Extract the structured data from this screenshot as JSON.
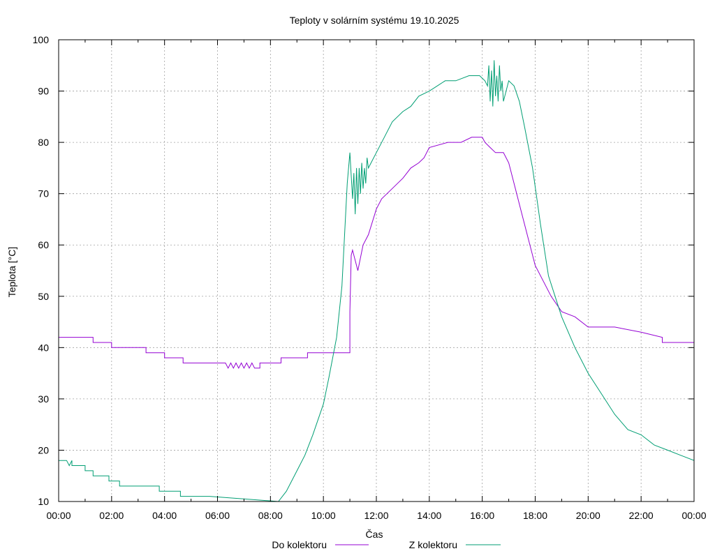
{
  "chart_data": {
    "type": "line",
    "title": "Teploty v solárním systému 19.10.2025",
    "xlabel": "Čas",
    "ylabel": "Teplota [°C]",
    "ylim": [
      10,
      100
    ],
    "xlim_hours": [
      0,
      24
    ],
    "grid": true,
    "legend_position": "bottom",
    "x_ticks": [
      {
        "hour": 0,
        "label": "00:00"
      },
      {
        "hour": 2,
        "label": "02:00"
      },
      {
        "hour": 4,
        "label": "04:00"
      },
      {
        "hour": 6,
        "label": "06:00"
      },
      {
        "hour": 8,
        "label": "08:00"
      },
      {
        "hour": 10,
        "label": "10:00"
      },
      {
        "hour": 12,
        "label": "12:00"
      },
      {
        "hour": 14,
        "label": "14:00"
      },
      {
        "hour": 16,
        "label": "16:00"
      },
      {
        "hour": 18,
        "label": "18:00"
      },
      {
        "hour": 20,
        "label": "20:00"
      },
      {
        "hour": 22,
        "label": "22:00"
      },
      {
        "hour": 24,
        "label": "00:00"
      }
    ],
    "y_ticks": [
      {
        "value": 10,
        "label": "10"
      },
      {
        "value": 20,
        "label": "20"
      },
      {
        "value": 30,
        "label": "30"
      },
      {
        "value": 40,
        "label": "40"
      },
      {
        "value": 50,
        "label": "50"
      },
      {
        "value": 60,
        "label": "60"
      },
      {
        "value": 70,
        "label": "70"
      },
      {
        "value": 80,
        "label": "80"
      },
      {
        "value": 90,
        "label": "90"
      },
      {
        "value": 100,
        "label": "100"
      }
    ],
    "series": [
      {
        "name": "Do kolektoru",
        "color": "#9400d3",
        "x": [
          0,
          1.3,
          1.3,
          2.0,
          2.0,
          3.3,
          3.3,
          4.0,
          4.0,
          4.7,
          4.7,
          6.3,
          6.4,
          6.5,
          6.6,
          6.7,
          6.8,
          6.9,
          7.0,
          7.1,
          7.2,
          7.3,
          7.4,
          7.5,
          7.6,
          7.6,
          8.4,
          8.4,
          9.4,
          9.4,
          11.0,
          11.0,
          11.05,
          11.1,
          11.2,
          11.3,
          11.5,
          11.7,
          12.0,
          12.2,
          12.6,
          13.0,
          13.3,
          13.6,
          13.8,
          14.0,
          14.7,
          15.0,
          15.2,
          15.6,
          16.0,
          16.1,
          16.3,
          16.5,
          16.8,
          17.0,
          17.2,
          17.5,
          17.8,
          18.0,
          18.3,
          18.6,
          19.0,
          19.5,
          20.0,
          21.0,
          22.0,
          22.8,
          22.8,
          24.0
        ],
        "values": [
          42,
          42,
          41,
          41,
          40,
          40,
          39,
          39,
          38,
          38,
          37,
          37,
          36,
          37,
          36,
          37,
          36,
          37,
          36,
          37,
          36,
          37,
          36,
          36,
          36,
          37,
          37,
          38,
          38,
          39,
          39,
          47,
          58,
          59,
          57,
          55,
          60,
          62,
          67,
          69,
          71,
          73,
          75,
          76,
          77,
          79,
          80,
          80,
          80,
          81,
          81,
          80,
          79,
          78,
          78,
          76,
          72,
          66,
          60,
          56,
          53,
          50,
          47,
          46,
          44,
          44,
          43,
          42,
          41,
          41
        ]
      },
      {
        "name": "Z kolektoru",
        "color": "#009e73",
        "x": [
          0,
          0.3,
          0.4,
          0.5,
          0.5,
          1.0,
          1.0,
          1.3,
          1.3,
          1.9,
          1.9,
          2.3,
          2.3,
          3.0,
          3.0,
          3.8,
          3.8,
          4.6,
          4.6,
          5.7,
          8.3,
          8.6,
          9.0,
          9.3,
          9.6,
          10.0,
          10.2,
          10.5,
          10.7,
          10.8,
          10.9,
          11.0,
          11.1,
          11.15,
          11.2,
          11.25,
          11.3,
          11.35,
          11.4,
          11.45,
          11.5,
          11.55,
          11.6,
          11.65,
          11.7,
          11.8,
          12.0,
          12.3,
          12.6,
          13.0,
          13.3,
          13.6,
          14.0,
          14.3,
          14.6,
          15.0,
          15.5,
          15.9,
          16.1,
          16.2,
          16.25,
          16.3,
          16.35,
          16.4,
          16.45,
          16.5,
          16.55,
          16.6,
          16.65,
          16.7,
          16.75,
          16.8,
          17.0,
          17.2,
          17.4,
          17.6,
          17.9,
          18.2,
          18.5,
          19.0,
          19.5,
          20.0,
          20.5,
          21.0,
          21.5,
          22.0,
          22.5,
          23.0,
          23.5,
          24.0
        ],
        "values": [
          18,
          18,
          17,
          18,
          17,
          17,
          16,
          16,
          15,
          15,
          14,
          14,
          13,
          13,
          13,
          13,
          12,
          12,
          11,
          11,
          10,
          12,
          16,
          19,
          23,
          29,
          34,
          42,
          52,
          62,
          72,
          78,
          69,
          74,
          66,
          75,
          68,
          75,
          70,
          76,
          71,
          75,
          72,
          77,
          75,
          76,
          78,
          81,
          84,
          86,
          87,
          89,
          90,
          91,
          92,
          92,
          93,
          93,
          92,
          91,
          95,
          88,
          94,
          87,
          96,
          89,
          93,
          88,
          95,
          90,
          92,
          88,
          92,
          91,
          88,
          83,
          75,
          64,
          54,
          46,
          40,
          35,
          31,
          27,
          24,
          23,
          21,
          20,
          19,
          18
        ]
      }
    ]
  }
}
